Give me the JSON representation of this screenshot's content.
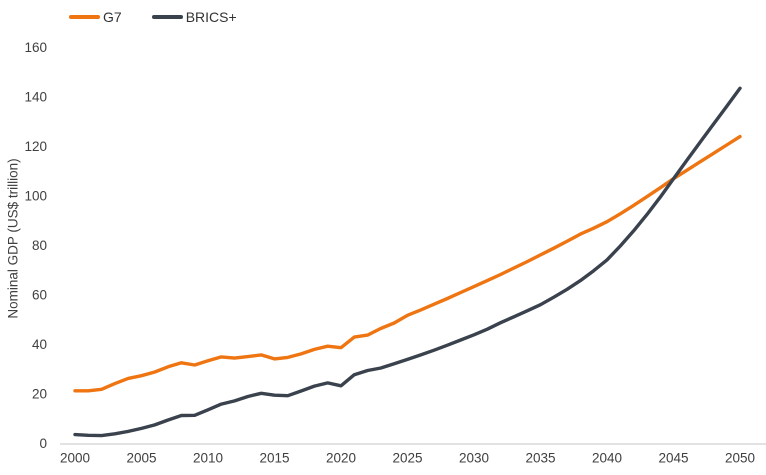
{
  "chart": {
    "legend": {
      "items": [
        {
          "label": "G7",
          "color": "#EE7511"
        },
        {
          "label": "BRICS+",
          "color": "#3A424D"
        }
      ]
    },
    "axis": {
      "tick_text_color": "#404040",
      "axis_line_color": "#D9D9D9"
    }
  },
  "chart_data": {
    "type": "line",
    "title": "",
    "xlabel": "",
    "ylabel": "Nominal GDP (US$ trillion)",
    "xlim": [
      2000,
      2050
    ],
    "ylim": [
      0,
      160
    ],
    "x_ticks": [
      2000,
      2005,
      2010,
      2015,
      2020,
      2025,
      2030,
      2035,
      2040,
      2045,
      2050
    ],
    "y_ticks": [
      0,
      20,
      40,
      60,
      80,
      100,
      120,
      140,
      160
    ],
    "grid": false,
    "legend_position": "top-left",
    "x": [
      2000,
      2001,
      2002,
      2003,
      2004,
      2005,
      2006,
      2007,
      2008,
      2009,
      2010,
      2011,
      2012,
      2013,
      2014,
      2015,
      2016,
      2017,
      2018,
      2019,
      2020,
      2021,
      2022,
      2023,
      2024,
      2025,
      2026,
      2027,
      2028,
      2029,
      2030,
      2031,
      2032,
      2033,
      2034,
      2035,
      2036,
      2037,
      2038,
      2039,
      2040,
      2041,
      2042,
      2043,
      2044,
      2045,
      2046,
      2047,
      2048,
      2049,
      2050
    ],
    "series": [
      {
        "name": "G7",
        "color": "#EE7511",
        "values": [
          21.3,
          21.3,
          21.9,
          24.2,
          26.3,
          27.4,
          28.9,
          31.0,
          32.6,
          31.7,
          33.4,
          35.0,
          34.5,
          35.1,
          35.8,
          34.2,
          34.8,
          36.2,
          38.0,
          39.3,
          38.7,
          43.0,
          43.8,
          46.5,
          48.7,
          51.8,
          54.0,
          56.3,
          58.6,
          61.0,
          63.4,
          65.8,
          68.3,
          70.9,
          73.5,
          76.2,
          78.9,
          81.7,
          84.6,
          87.0,
          89.6,
          92.8,
          96.2,
          99.7,
          103.3,
          107.0,
          110.4,
          113.8,
          117.2,
          120.6,
          124.0
        ]
      },
      {
        "name": "BRICS+",
        "color": "#3A424D",
        "values": [
          3.6,
          3.3,
          3.2,
          3.9,
          4.9,
          6.1,
          7.5,
          9.5,
          11.3,
          11.4,
          13.6,
          15.9,
          17.2,
          19.0,
          20.3,
          19.5,
          19.3,
          21.2,
          23.2,
          24.5,
          23.3,
          27.8,
          29.5,
          30.5,
          32.2,
          34.0,
          35.8,
          37.7,
          39.7,
          41.8,
          43.9,
          46.2,
          48.8,
          51.2,
          53.6,
          56.1,
          59.1,
          62.3,
          65.8,
          69.8,
          74.2,
          79.8,
          85.9,
          92.5,
          99.5,
          107.0,
          114.4,
          121.7,
          129.0,
          136.2,
          143.5
        ]
      }
    ]
  }
}
